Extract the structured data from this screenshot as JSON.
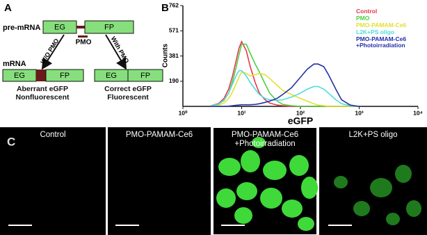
{
  "panel_a": {
    "label": "A",
    "pre_mrna": "pre-mRNA",
    "eg": "EG",
    "fp": "FP",
    "pmo": "PMO",
    "without_pmo": "W/O PMO",
    "with_pmo": "With PMO",
    "mrna": "mRNA",
    "left_result": {
      "eg": "EG",
      "fp": "FP",
      "caption": "Aberrant eGFP\nNonfluorescent"
    },
    "right_result": {
      "eg": "EG",
      "fp": "FP",
      "caption": "Correct eGFP\nFluorescent"
    }
  },
  "panel_b_label": "B",
  "chart_data": {
    "type": "line",
    "x_label": "eGFP",
    "y_label": "Counts",
    "xscale": "log",
    "xlim": [
      1,
      10000
    ],
    "xticks": [
      {
        "value": 1,
        "label": "10⁰"
      },
      {
        "value": 10,
        "label": "10¹"
      },
      {
        "value": 100,
        "label": "10²"
      },
      {
        "value": 1000,
        "label": "10³"
      },
      {
        "value": 10000,
        "label": "10⁴"
      }
    ],
    "ylim": [
      0,
      762
    ],
    "yticks": [
      190,
      381,
      571,
      762
    ],
    "grid": false,
    "legend": "top-right",
    "x": [
      3,
      4,
      5,
      6,
      7,
      8,
      9,
      10,
      12,
      14,
      17,
      20,
      25,
      30,
      40,
      50,
      70,
      100,
      130,
      170,
      200,
      250,
      300,
      400,
      500,
      700,
      1000
    ],
    "series": [
      {
        "name": "Control",
        "color": "#e8364a",
        "values": [
          5,
          20,
          60,
          130,
          230,
          340,
          440,
          490,
          420,
          300,
          180,
          100,
          50,
          25,
          10,
          5,
          0,
          0,
          0,
          0,
          0,
          0,
          0,
          0,
          0,
          0,
          0
        ]
      },
      {
        "name": "PMO",
        "color": "#4ccf45",
        "values": [
          5,
          15,
          45,
          100,
          190,
          290,
          390,
          470,
          470,
          400,
          320,
          260,
          170,
          100,
          40,
          15,
          5,
          0,
          0,
          0,
          0,
          0,
          0,
          0,
          0,
          0,
          0
        ]
      },
      {
        "name": "PMO-PAMAM-Ce6",
        "color": "#e2e032",
        "values": [
          2,
          8,
          25,
          60,
          110,
          170,
          220,
          260,
          250,
          230,
          240,
          250,
          240,
          210,
          160,
          120,
          90,
          60,
          40,
          20,
          10,
          5,
          0,
          0,
          0,
          0,
          0
        ]
      },
      {
        "name": "L2K+PS oligo",
        "color": "#4fdcdc",
        "values": [
          5,
          15,
          50,
          100,
          170,
          230,
          270,
          270,
          230,
          180,
          130,
          90,
          60,
          50,
          45,
          50,
          70,
          100,
          130,
          150,
          150,
          130,
          100,
          50,
          20,
          5,
          0
        ]
      },
      {
        "name": "PMO-PAMAM-Ce6\n+Photoirradiation",
        "color": "#2430a8",
        "values": [
          0,
          0,
          0,
          2,
          5,
          8,
          10,
          12,
          12,
          12,
          15,
          20,
          30,
          40,
          60,
          90,
          140,
          220,
          280,
          320,
          320,
          300,
          240,
          130,
          50,
          10,
          0
        ]
      }
    ]
  },
  "panel_c": {
    "label": "C",
    "images": [
      {
        "title": "Control"
      },
      {
        "title": "PMO-PAMAM-Ce6"
      },
      {
        "title": "PMO-PAMAM-Ce6\n+Photoirradiation"
      },
      {
        "title": "L2K+PS oligo"
      }
    ]
  }
}
